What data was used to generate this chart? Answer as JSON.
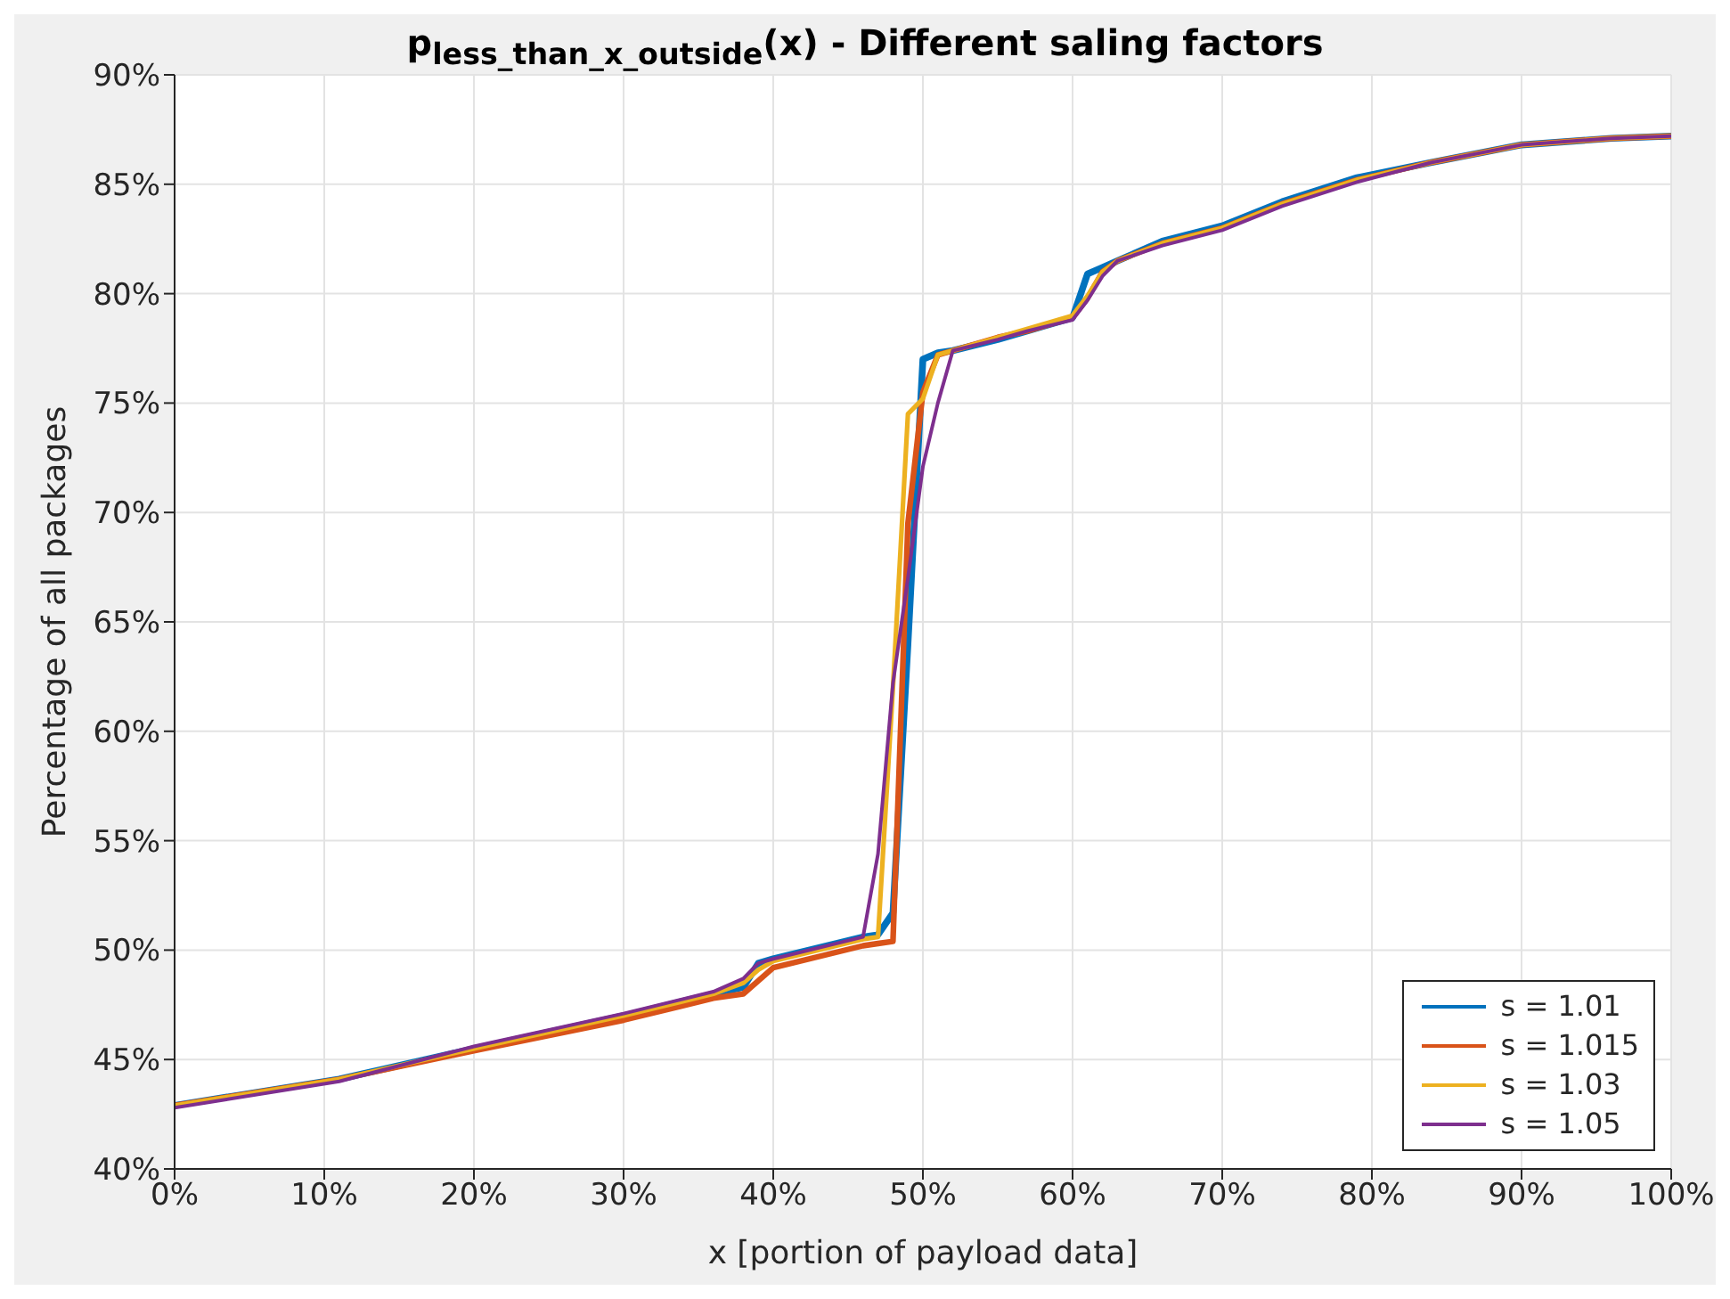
{
  "chart_data": {
    "type": "line",
    "title": "p$_{less_than_x_outside}$(x)  - Different saling factors",
    "xlabel": "x [portion of payload data]",
    "ylabel": "Percentage of all packages",
    "x": [
      0,
      11,
      20,
      30,
      36,
      38,
      39,
      40,
      46,
      47,
      48,
      49,
      50,
      51,
      52,
      55,
      57,
      60,
      61,
      62,
      63,
      66,
      70,
      74,
      79,
      84,
      90,
      96,
      100
    ],
    "series": [
      {
        "name": "s = 1.01",
        "color": "#0072bd",
        "values": [
          42.9,
          44.1,
          45.5,
          47.0,
          48.0,
          48.3,
          49.4,
          49.6,
          50.6,
          50.7,
          51.7,
          64,
          77.0,
          77.3,
          77.4,
          77.9,
          78.3,
          78.9,
          80.9,
          81.2,
          81.5,
          82.4,
          83.1,
          84.2,
          85.3,
          86.0,
          86.8,
          87.1,
          87.2
        ]
      },
      {
        "name": "s = 1.015",
        "color": "#d95319",
        "values": [
          42.9,
          44.1,
          45.4,
          46.8,
          47.8,
          48.0,
          48.6,
          49.2,
          50.2,
          50.3,
          50.4,
          69.5,
          75.5,
          77.2,
          77.4,
          78.0,
          78.3,
          78.9,
          79.8,
          81.0,
          81.5,
          82.3,
          83.0,
          84.1,
          85.2,
          86.0,
          86.8,
          87.1,
          87.2
        ]
      },
      {
        "name": "s = 1.03",
        "color": "#edb120",
        "values": [
          42.9,
          44.1,
          45.5,
          47.0,
          48.0,
          48.5,
          49.1,
          49.5,
          50.5,
          50.6,
          62,
          74.5,
          75.2,
          77.2,
          77.4,
          78.0,
          78.4,
          79.0,
          79.9,
          81.0,
          81.5,
          82.3,
          83.0,
          84.1,
          85.2,
          86.0,
          86.8,
          87.1,
          87.2
        ]
      },
      {
        "name": "s = 1.05",
        "color": "#7e2f8e",
        "values": [
          42.8,
          44.0,
          45.6,
          47.1,
          48.1,
          48.7,
          49.4,
          49.6,
          50.6,
          54.4,
          62.2,
          67,
          72.1,
          75,
          77.4,
          77.9,
          78.3,
          78.8,
          79.7,
          80.8,
          81.5,
          82.2,
          82.9,
          84.0,
          85.1,
          86.0,
          86.8,
          87.1,
          87.2
        ]
      }
    ],
    "xlim": [
      0,
      100
    ],
    "xticks": [
      {
        "value": 0,
        "label": "0%"
      },
      {
        "value": 10,
        "label": "10%"
      },
      {
        "value": 20,
        "label": "20%"
      },
      {
        "value": 30,
        "label": "30%"
      },
      {
        "value": 40,
        "label": "40%"
      },
      {
        "value": 50,
        "label": "50%"
      },
      {
        "value": 60,
        "label": "60%"
      },
      {
        "value": 70,
        "label": "70%"
      },
      {
        "value": 80,
        "label": "80%"
      },
      {
        "value": 90,
        "label": "90%"
      },
      {
        "value": 100,
        "label": "100%"
      }
    ],
    "ylim": [
      40,
      90
    ],
    "yticks": [
      {
        "value": 40,
        "label": "40%"
      },
      {
        "value": 45,
        "label": "45%"
      },
      {
        "value": 50,
        "label": "50%"
      },
      {
        "value": 55,
        "label": "55%"
      },
      {
        "value": 60,
        "label": "60%"
      },
      {
        "value": 65,
        "label": "65%"
      },
      {
        "value": 70,
        "label": "70%"
      },
      {
        "value": 75,
        "label": "75%"
      },
      {
        "value": 80,
        "label": "80%"
      },
      {
        "value": 85,
        "label": "85%"
      },
      {
        "value": 90,
        "label": "90%"
      }
    ],
    "grid": true,
    "legend": "bottom right",
    "marker": "none",
    "line_style": "solid"
  }
}
